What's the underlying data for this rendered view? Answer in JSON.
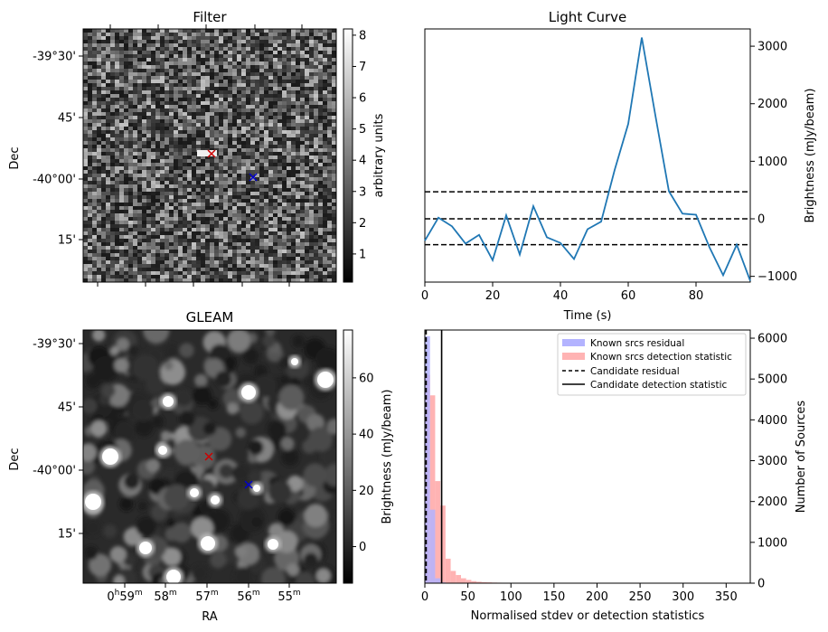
{
  "chart_data": [
    {
      "id": "filter",
      "type": "heatmap",
      "title": "Filter",
      "ylabel": "Dec",
      "yticks": [
        "-39°30'",
        "45'",
        "-40°00'",
        "15'"
      ],
      "colorbar": {
        "label": "arbitrary units",
        "ticks": [
          "1",
          "2",
          "3",
          "4",
          "5",
          "6",
          "7",
          "8"
        ],
        "range": [
          0.1,
          8.2
        ]
      },
      "markers": [
        {
          "name": "candidate",
          "color": "#cc0000",
          "symbol": "x"
        },
        {
          "name": "reference",
          "color": "#0000cc",
          "symbol": "x"
        }
      ],
      "grid": false
    },
    {
      "id": "lightcurve",
      "type": "line",
      "title": "Light Curve",
      "xlabel": "Time (s)",
      "ylabel": "Brightness (mJy/beam)",
      "xlim": [
        0,
        96
      ],
      "ylim": [
        -1100,
        3300
      ],
      "xticks": [
        "0",
        "20",
        "40",
        "60",
        "80"
      ],
      "yticks": [
        "−1000",
        "0",
        "1000",
        "2000",
        "3000"
      ],
      "line_color": "#1f77b4",
      "x": [
        0,
        4,
        8,
        12,
        16,
        20,
        24,
        28,
        32,
        36,
        40,
        44,
        48,
        52,
        56,
        60,
        64,
        68,
        72,
        76,
        80,
        84,
        88,
        92,
        96
      ],
      "y": [
        -380,
        20,
        -130,
        -430,
        -280,
        -720,
        60,
        -620,
        220,
        -320,
        -420,
        -700,
        -180,
        -50,
        850,
        1650,
        3150,
        1800,
        480,
        90,
        70,
        -500,
        -980,
        -450,
        -1080
      ],
      "hlines": [
        {
          "y": 0,
          "style": "dashed"
        },
        {
          "y": 470,
          "style": "dashed"
        },
        {
          "y": -450,
          "style": "dashed"
        }
      ]
    },
    {
      "id": "gleam",
      "type": "heatmap",
      "title": "GLEAM",
      "xlabel": "RA",
      "ylabel": "Dec",
      "xticks": [
        "0h59m",
        "58m",
        "57m",
        "56m",
        "55m"
      ],
      "yticks": [
        "-39°30'",
        "45'",
        "-40°00'",
        "15'"
      ],
      "colorbar": {
        "label": "Brightness (mJy/beam)",
        "ticks": [
          "0",
          "20",
          "40",
          "60"
        ],
        "range": [
          -13,
          77
        ]
      },
      "markers": [
        {
          "name": "candidate",
          "color": "#cc0000",
          "symbol": "x"
        },
        {
          "name": "reference",
          "color": "#0000cc",
          "symbol": "x"
        }
      ],
      "grid": false
    },
    {
      "id": "histogram",
      "type": "bar",
      "xlabel": "Normalised stdev or detection statistics",
      "ylabel": "Number of Sources",
      "xlim": [
        0,
        378
      ],
      "ylim": [
        0,
        6200
      ],
      "xticks": [
        "0",
        "50",
        "100",
        "150",
        "200",
        "250",
        "300",
        "350"
      ],
      "yticks": [
        "0",
        "1000",
        "2000",
        "3000",
        "4000",
        "5000",
        "6000"
      ],
      "bin_width": 6,
      "series": [
        {
          "name": "Known srcs residual",
          "color": "#b3b3ff",
          "bin_start": 0,
          "values": [
            6050,
            1800,
            120,
            20,
            5
          ]
        },
        {
          "name": "Known srcs detection statistic",
          "color": "#ffb3b3",
          "bin_start": 0,
          "values": [
            5100,
            4600,
            2500,
            1900,
            600,
            300,
            200,
            120,
            80,
            50,
            35,
            25,
            20,
            15,
            12,
            10,
            8,
            7,
            6,
            5,
            5,
            4,
            4,
            3,
            3,
            3,
            2,
            2,
            2,
            2,
            2,
            1,
            1,
            1,
            1,
            1,
            1,
            1,
            1,
            1,
            1,
            1,
            1,
            1,
            1,
            1,
            1,
            1,
            1,
            1,
            1,
            1,
            1,
            1,
            1,
            1,
            1,
            1,
            1,
            1,
            1,
            1,
            1
          ]
        }
      ],
      "vlines": [
        {
          "name": "Candidate residual",
          "x": 1.5,
          "style": "dashed"
        },
        {
          "name": "Candidate detection statistic",
          "x": 19.5,
          "style": "solid"
        }
      ],
      "legend": "top-right",
      "grid": false
    }
  ]
}
